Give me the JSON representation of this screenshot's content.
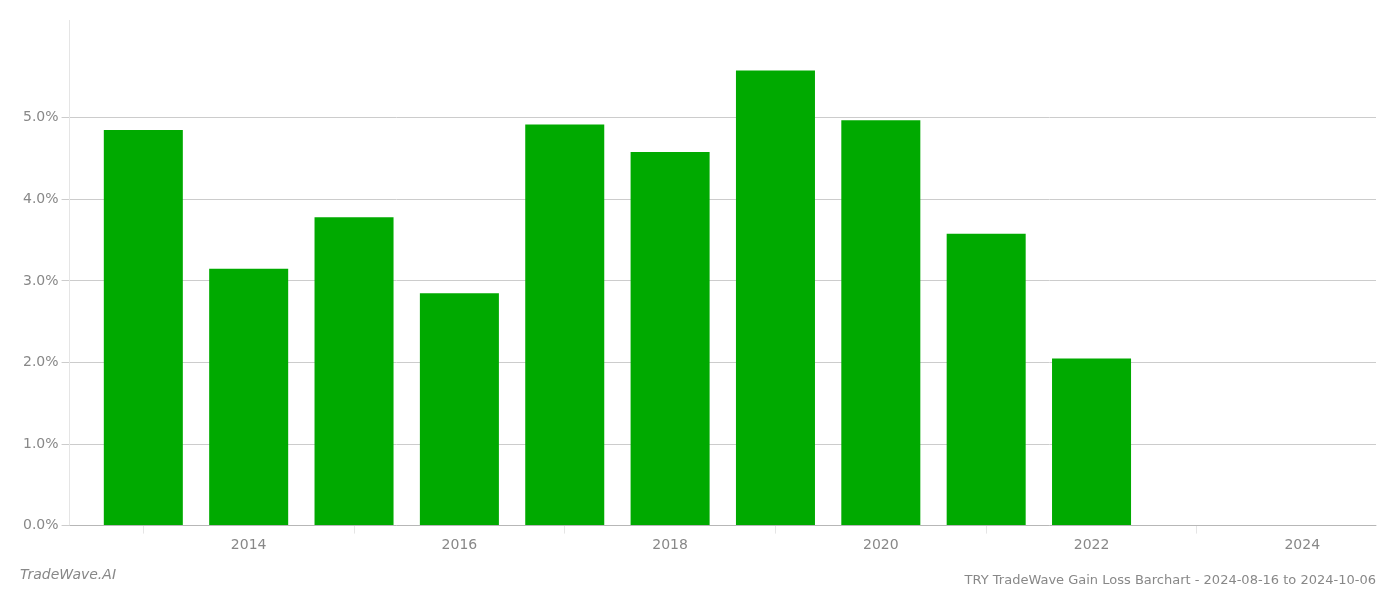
{
  "chart_data": {
    "type": "bar",
    "title": "TRY TradeWave Gain Loss Barchart - 2024-08-16 to 2024-10-06",
    "annotations": [
      "TradeWave.AI"
    ],
    "x": [
      2013,
      2014,
      2015,
      2016,
      2017,
      2018,
      2019,
      2020,
      2021,
      2022,
      2023
    ],
    "values": [
      0.0485,
      0.0315,
      0.0378,
      0.0285,
      0.0492,
      0.0458,
      0.0558,
      0.0497,
      0.0358,
      0.0205,
      0.0
    ],
    "color": "#00aa00",
    "xlim": [
      2012.3,
      2024.7
    ],
    "xticks": [
      2014,
      2016,
      2018,
      2020,
      2022,
      2024
    ],
    "ylim": [
      0,
      0.062
    ],
    "yticks": [
      {
        "value": 0.0,
        "label": "0.0%"
      },
      {
        "value": 0.01,
        "label": "1.0%"
      },
      {
        "value": 0.02,
        "label": "2.0%"
      },
      {
        "value": 0.03,
        "label": "3.0%"
      },
      {
        "value": 0.04,
        "label": "4.0%"
      },
      {
        "value": 0.05,
        "label": "5.0%"
      }
    ],
    "grid": true
  }
}
